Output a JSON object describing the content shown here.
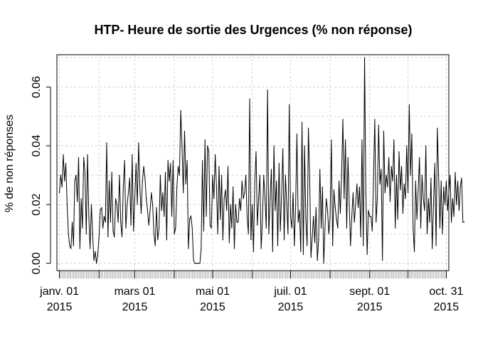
{
  "chart_data": {
    "type": "line",
    "title": "HTP- Heure de sortie des Urgences (% non réponse)",
    "xlabel": "",
    "ylabel": "% de non réponses",
    "ylim": [
      -0.0025,
      0.071
    ],
    "yticks": [
      0.0,
      0.02,
      0.04,
      0.06
    ],
    "ytick_labels": [
      "0.00",
      "0.02",
      "0.04",
      "0.06"
    ],
    "xlim": [
      -2,
      305
    ],
    "xticks": [
      {
        "day": 0,
        "line1": "janv. 01",
        "line2": "2015"
      },
      {
        "day": 59,
        "line1": "mars 01",
        "line2": "2015"
      },
      {
        "day": 120,
        "line1": "mai 01",
        "line2": "2015"
      },
      {
        "day": 181,
        "line1": "juil. 01",
        "line2": "2015"
      },
      {
        "day": 243,
        "line1": "sept. 01",
        "line2": "2015"
      },
      {
        "day": 303,
        "line1": "oct. 31",
        "line2": "2015"
      }
    ],
    "series": [
      {
        "name": "% non réponse",
        "x_start_day": 0,
        "values": [
          0.024,
          0.03,
          0.026,
          0.037,
          0.028,
          0.034,
          0.02,
          0.01,
          0.006,
          0.005,
          0.014,
          0.006,
          0.028,
          0.03,
          0.021,
          0.036,
          0.005,
          0.022,
          0.012,
          0.036,
          0.031,
          0.01,
          0.037,
          0.016,
          0.005,
          0.02,
          0.01,
          0.001,
          0.004,
          0.0,
          0.003,
          0.009,
          0.018,
          0.019,
          0.012,
          0.016,
          0.014,
          0.041,
          0.009,
          0.028,
          0.014,
          0.031,
          0.011,
          0.009,
          0.022,
          0.02,
          0.014,
          0.03,
          0.014,
          0.009,
          0.026,
          0.035,
          0.012,
          0.02,
          0.024,
          0.029,
          0.013,
          0.037,
          0.011,
          0.022,
          0.034,
          0.02,
          0.041,
          0.026,
          0.017,
          0.028,
          0.033,
          0.029,
          0.022,
          0.018,
          0.013,
          0.018,
          0.024,
          0.02,
          0.01,
          0.006,
          0.019,
          0.008,
          0.012,
          0.03,
          0.018,
          0.024,
          0.016,
          0.031,
          0.008,
          0.035,
          0.028,
          0.034,
          0.016,
          0.035,
          0.01,
          0.012,
          0.026,
          0.033,
          0.03,
          0.052,
          0.04,
          0.024,
          0.045,
          0.027,
          0.035,
          0.005,
          0.015,
          0.016,
          0.012,
          0.001,
          0.0,
          0.0,
          0.0,
          0.0,
          0.0,
          0.005,
          0.035,
          0.011,
          0.042,
          0.016,
          0.04,
          0.038,
          0.013,
          0.012,
          0.03,
          0.022,
          0.037,
          0.026,
          0.01,
          0.033,
          0.015,
          0.03,
          0.008,
          0.022,
          0.025,
          0.018,
          0.033,
          0.007,
          0.02,
          0.012,
          0.026,
          0.005,
          0.02,
          0.014,
          0.014,
          0.022,
          0.018,
          0.028,
          0.022,
          0.024,
          0.03,
          0.016,
          0.01,
          0.056,
          0.008,
          0.02,
          0.004,
          0.028,
          0.038,
          0.013,
          0.022,
          0.03,
          0.005,
          0.015,
          0.03,
          0.022,
          0.012,
          0.059,
          0.01,
          0.022,
          0.032,
          0.004,
          0.04,
          0.018,
          0.028,
          0.006,
          0.034,
          0.011,
          0.023,
          0.039,
          0.008,
          0.03,
          0.02,
          0.01,
          0.054,
          0.016,
          0.012,
          0.024,
          0.006,
          0.02,
          0.044,
          0.014,
          0.018,
          0.004,
          0.048,
          0.003,
          0.04,
          0.015,
          0.006,
          0.046,
          0.029,
          0.002,
          0.009,
          0.016,
          0.007,
          0.019,
          0.001,
          0.008,
          0.032,
          0.012,
          0.026,
          0.0,
          0.012,
          0.022,
          0.018,
          0.01,
          0.016,
          0.042,
          0.006,
          0.025,
          0.019,
          0.015,
          0.012,
          0.028,
          0.017,
          0.03,
          0.049,
          0.022,
          0.042,
          0.012,
          0.036,
          0.02,
          0.006,
          0.016,
          0.024,
          0.014,
          0.02,
          0.027,
          0.019,
          0.026,
          0.009,
          0.042,
          0.006,
          0.07,
          0.024,
          0.003,
          0.018,
          0.016,
          0.016,
          0.011,
          0.029,
          0.049,
          0.014,
          0.022,
          0.047,
          0.027,
          0.032,
          0.001,
          0.045,
          0.024,
          0.03,
          0.026,
          0.036,
          0.021,
          0.033,
          0.028,
          0.042,
          0.012,
          0.03,
          0.015,
          0.038,
          0.025,
          0.033,
          0.017,
          0.027,
          0.022,
          0.04,
          0.024,
          0.054,
          0.03,
          0.044,
          0.012,
          0.004,
          0.028,
          0.015,
          0.025,
          0.036,
          0.012,
          0.03,
          0.022,
          0.018,
          0.04,
          0.01,
          0.022,
          0.014,
          0.029,
          0.005,
          0.02,
          0.034,
          0.006,
          0.046,
          0.03,
          0.012,
          0.028,
          0.01,
          0.026,
          0.02,
          0.028,
          0.018,
          0.024,
          0.03,
          0.014,
          0.022,
          0.016,
          0.031,
          0.02,
          0.028,
          0.018,
          0.026,
          0.029,
          0.014,
          0.014
        ]
      }
    ],
    "grid": true,
    "legend": "none"
  }
}
